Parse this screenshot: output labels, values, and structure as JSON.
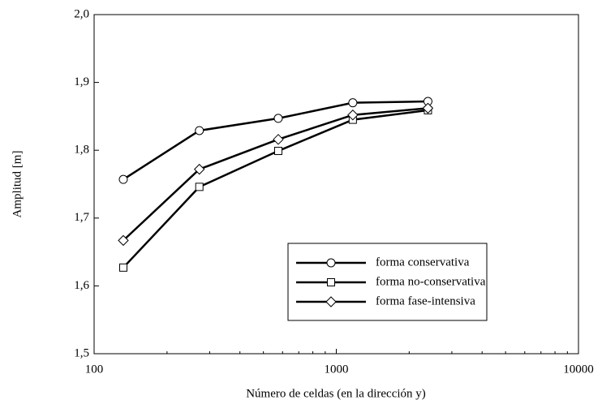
{
  "chart_data": {
    "type": "line",
    "x_label": "Número de celdas (en la dirección y)",
    "y_label": "Amplitud  [m]",
    "x": [
      132,
      272,
      576,
      1170,
      2390
    ],
    "series": [
      {
        "name": "forma conservativa",
        "color": "#000000",
        "marker": "circle",
        "values": [
          1.757,
          1.829,
          1.847,
          1.87,
          1.872
        ]
      },
      {
        "name": "forma no-conservativa",
        "color": "#000000",
        "marker": "square",
        "values": [
          1.627,
          1.746,
          1.799,
          1.845,
          1.859
        ]
      },
      {
        "name": "forma fase-intensiva",
        "color": "#000000",
        "marker": "diamond",
        "values": [
          1.667,
          1.772,
          1.816,
          1.852,
          1.862
        ]
      }
    ],
    "xlim": [
      100,
      10000
    ],
    "xticks": [
      100,
      1000,
      10000
    ],
    "xscale": "log",
    "ylim": [
      1.5,
      2.0
    ],
    "yticks": [
      {
        "value": 1.5,
        "label": "1,5"
      },
      {
        "value": 1.6,
        "label": "1,6"
      },
      {
        "value": 1.7,
        "label": "1,7"
      },
      {
        "value": 1.8,
        "label": "1,8"
      },
      {
        "value": 1.9,
        "label": "1,9"
      },
      {
        "value": 2.0,
        "label": "2,0"
      }
    ],
    "grid": false,
    "legend": "lower right"
  }
}
